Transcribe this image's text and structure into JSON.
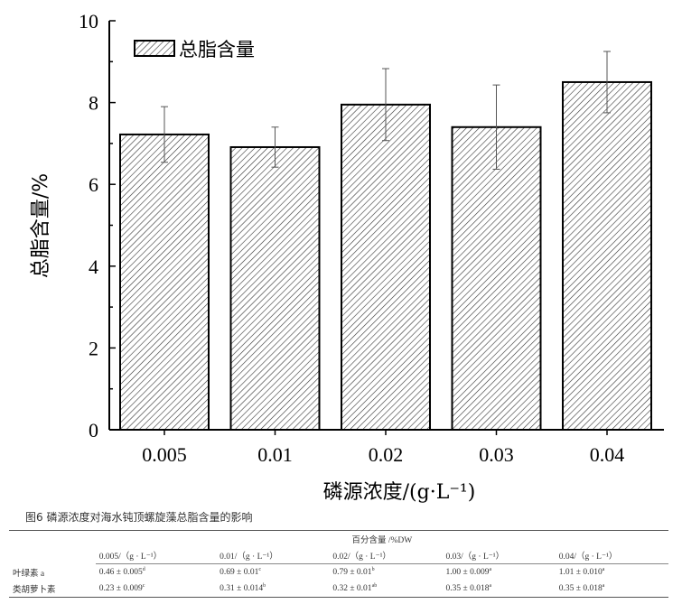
{
  "chart_data": {
    "type": "bar",
    "categories": [
      "0.005",
      "0.01",
      "0.02",
      "0.03",
      "0.04"
    ],
    "values": [
      7.22,
      6.91,
      7.95,
      7.4,
      8.5
    ],
    "errors": [
      0.68,
      0.49,
      0.88,
      1.03,
      0.75
    ],
    "series": [
      {
        "name": "总脂含量",
        "values": [
          7.22,
          6.91,
          7.95,
          7.4,
          8.5
        ]
      }
    ],
    "xlabel": "磷源浓度/(g·L⁻¹)",
    "ylabel": "总脂含量/%",
    "ylim": [
      0,
      10
    ],
    "yticks": [
      "0",
      "2",
      "4",
      "6",
      "8",
      "10"
    ],
    "legend": "top-left",
    "pattern": "diagonal-hatch",
    "grid": false
  },
  "caption": "图6 磷源浓度对海水钝顶螺旋藻总脂含量的影响",
  "table": {
    "group_header": "百分含量 /%DW",
    "columns": [
      "0.005/（g · L⁻¹）",
      "0.01/（g · L⁻¹）",
      "0.02/（g · L⁻¹）",
      "0.03/（g · L⁻¹）",
      "0.04/（g · L⁻¹）"
    ],
    "rows": [
      {
        "label": "叶绿素 a",
        "cells": [
          [
            "0.46 ± 0.005",
            "d"
          ],
          [
            "0.69 ± 0.01",
            "c"
          ],
          [
            "0.79 ± 0.01",
            "b"
          ],
          [
            "1.00 ± 0.009",
            "a"
          ],
          [
            "1.01 ± 0.010",
            "a"
          ]
        ]
      },
      {
        "label": "类胡萝卜素",
        "cells": [
          [
            "0.23 ± 0.009",
            "c"
          ],
          [
            "0.31 ± 0.014",
            "b"
          ],
          [
            "0.32 ± 0.01",
            "ab"
          ],
          [
            "0.35 ± 0.018",
            "a"
          ],
          [
            "0.35 ± 0.018",
            "a"
          ]
        ]
      }
    ]
  }
}
